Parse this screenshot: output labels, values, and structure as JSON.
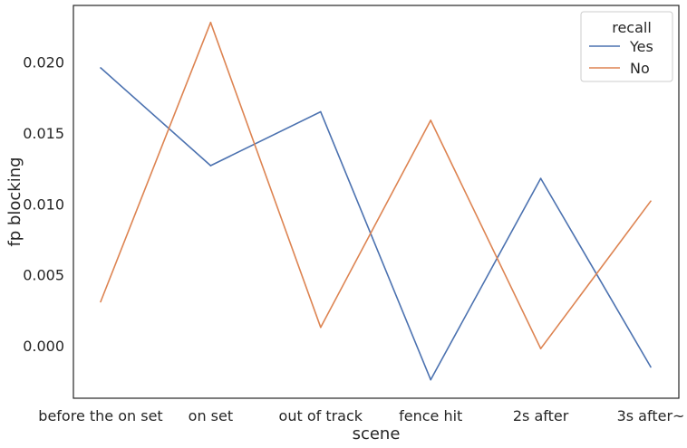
{
  "chart_data": {
    "type": "line",
    "categories": [
      "before the on set",
      "on set",
      "out of track",
      "fence hit",
      "2s after",
      "3s after~"
    ],
    "series": [
      {
        "name": "Yes",
        "color": "#4c72b0",
        "values": [
          0.0196,
          0.0127,
          0.0165,
          -0.0024,
          0.0118,
          -0.0015
        ]
      },
      {
        "name": "No",
        "color": "#dd8452",
        "values": [
          0.0031,
          0.0228,
          0.0013,
          0.0159,
          -0.0002,
          0.0102
        ]
      }
    ],
    "xlabel": "scene",
    "ylabel": "fp blocking",
    "ylim": [
      -0.0037,
      0.024
    ],
    "yticks": [
      0.0,
      0.005,
      0.01,
      0.015,
      0.02
    ],
    "ytick_labels": [
      "0.000",
      "0.005",
      "0.010",
      "0.015",
      "0.020"
    ],
    "legend": {
      "title": "recall",
      "placement": "top-right"
    },
    "grid": false
  }
}
